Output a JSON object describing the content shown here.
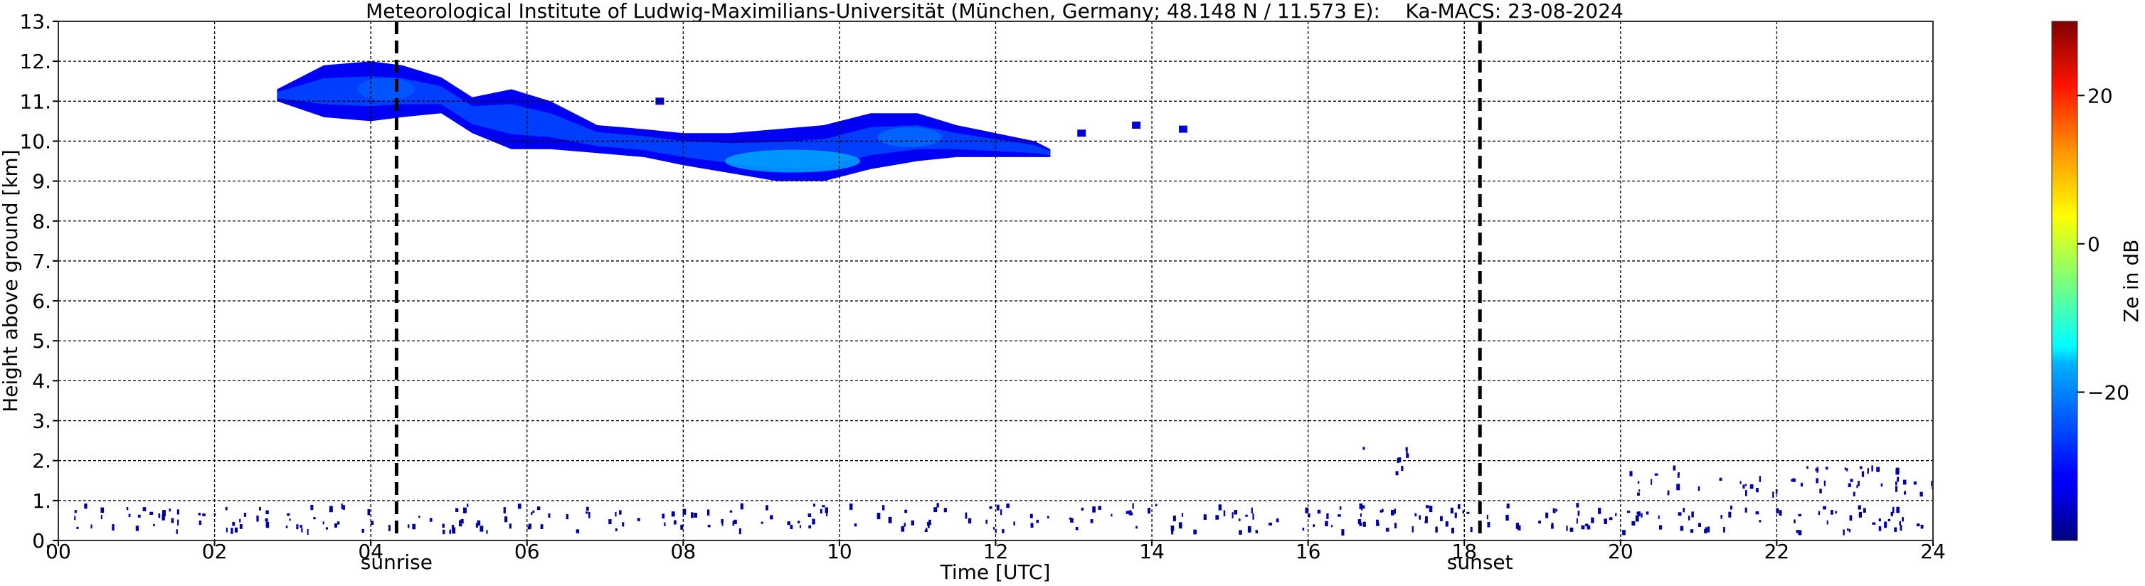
{
  "chart_data": {
    "type": "heatmap",
    "title": "Meteorological Institute of Ludwig-Maximilians-Universität (München, Germany; 48.148 N / 11.573 E):    Ka-MACS: 23-08-2024",
    "xlabel": "Time [UTC]",
    "ylabel": "Height above ground [km]",
    "xlim": [
      0,
      24
    ],
    "ylim": [
      0,
      13
    ],
    "x_ticks": [
      {
        "value": 0,
        "label": "00"
      },
      {
        "value": 2,
        "label": "02"
      },
      {
        "value": 4,
        "label": "04"
      },
      {
        "value": 6,
        "label": "06"
      },
      {
        "value": 8,
        "label": "08"
      },
      {
        "value": 10,
        "label": "10"
      },
      {
        "value": 12,
        "label": "12"
      },
      {
        "value": 14,
        "label": "14"
      },
      {
        "value": 16,
        "label": "16"
      },
      {
        "value": 18,
        "label": "18"
      },
      {
        "value": 20,
        "label": "20"
      },
      {
        "value": 22,
        "label": "22"
      },
      {
        "value": 24,
        "label": "24"
      }
    ],
    "y_ticks": [
      {
        "value": 0,
        "label": "0."
      },
      {
        "value": 1,
        "label": "1."
      },
      {
        "value": 2,
        "label": "2."
      },
      {
        "value": 3,
        "label": "3."
      },
      {
        "value": 4,
        "label": "4."
      },
      {
        "value": 5,
        "label": "5."
      },
      {
        "value": 6,
        "label": "6."
      },
      {
        "value": 7,
        "label": "7."
      },
      {
        "value": 8,
        "label": "8."
      },
      {
        "value": 9,
        "label": "9."
      },
      {
        "value": 10,
        "label": "10."
      },
      {
        "value": 11,
        "label": "11."
      },
      {
        "value": 12,
        "label": "12."
      },
      {
        "value": 13,
        "label": "13."
      }
    ],
    "grid": true,
    "extra_vertical_gridlines": [
      4.0,
      18.0
    ],
    "markers": [
      {
        "time": 4.33,
        "label": "sunrise"
      },
      {
        "time": 18.2,
        "label": "sunset"
      }
    ],
    "colorbar": {
      "label": "Ze in dB",
      "range": [
        -40,
        30
      ],
      "ticks": [
        {
          "value": 20,
          "label": "20"
        },
        {
          "value": 0,
          "label": "0"
        },
        {
          "value": -20,
          "label": "−20"
        }
      ],
      "colormap": "jet"
    },
    "cloud_layer": {
      "top_km": [
        [
          2.8,
          11.3
        ],
        [
          3.4,
          11.9
        ],
        [
          4.0,
          12.0
        ],
        [
          4.4,
          11.9
        ],
        [
          4.9,
          11.6
        ],
        [
          5.3,
          11.1
        ],
        [
          5.8,
          11.3
        ],
        [
          6.3,
          11.0
        ],
        [
          6.9,
          10.4
        ],
        [
          7.5,
          10.3
        ],
        [
          8.0,
          10.2
        ],
        [
          8.6,
          10.2
        ],
        [
          9.2,
          10.3
        ],
        [
          9.8,
          10.4
        ],
        [
          10.4,
          10.7
        ],
        [
          11.0,
          10.7
        ],
        [
          11.5,
          10.4
        ],
        [
          12.0,
          10.2
        ],
        [
          12.5,
          10.0
        ],
        [
          12.7,
          9.8
        ]
      ],
      "base_km": [
        [
          2.8,
          11.0
        ],
        [
          3.4,
          10.6
        ],
        [
          4.0,
          10.5
        ],
        [
          4.4,
          10.6
        ],
        [
          4.9,
          10.7
        ],
        [
          5.3,
          10.2
        ],
        [
          5.8,
          9.8
        ],
        [
          6.3,
          9.8
        ],
        [
          6.9,
          9.7
        ],
        [
          7.5,
          9.6
        ],
        [
          8.0,
          9.4
        ],
        [
          8.6,
          9.2
        ],
        [
          9.2,
          9.0
        ],
        [
          9.8,
          9.0
        ],
        [
          10.4,
          9.3
        ],
        [
          11.0,
          9.5
        ],
        [
          11.5,
          9.6
        ],
        [
          12.0,
          9.6
        ],
        [
          12.5,
          9.6
        ],
        [
          12.7,
          9.6
        ]
      ],
      "core_ze_db": -20,
      "edge_ze_db": -32
    },
    "fragments": [
      {
        "time": 13.1,
        "height_km": 10.2,
        "ze_db": -34
      },
      {
        "time": 13.8,
        "height_km": 10.4,
        "ze_db": -34
      },
      {
        "time": 14.4,
        "height_km": 10.3,
        "ze_db": -34
      },
      {
        "time": 7.7,
        "height_km": 11.0,
        "ze_db": -34
      }
    ],
    "low_clutter": [
      {
        "t_start": 16.7,
        "t_end": 17.3,
        "height_km": 2.05,
        "ze_db": -38
      },
      {
        "t_start": 19.9,
        "t_end": 24.0,
        "height_km": 1.55,
        "ze_db": -37
      },
      {
        "t_start": 0.2,
        "t_end": 24.0,
        "height_km": 0.6,
        "ze_db": -38
      }
    ]
  }
}
